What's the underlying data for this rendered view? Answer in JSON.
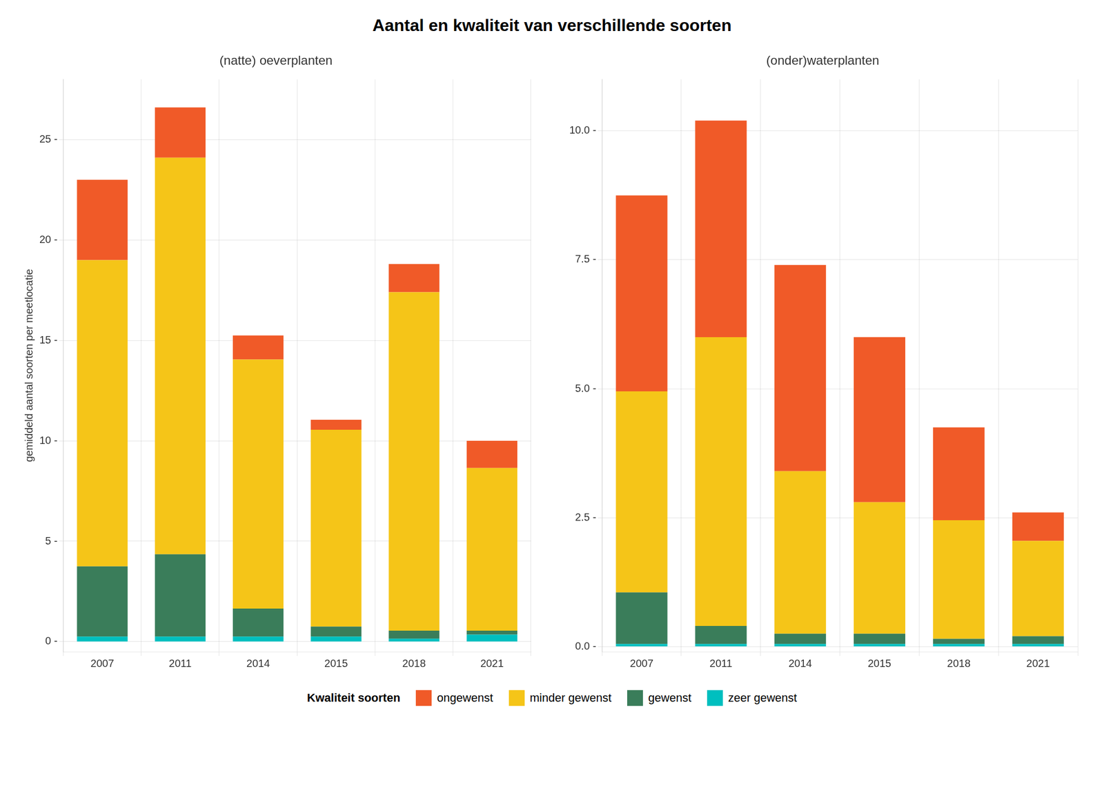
{
  "title": "Aantal en kwaliteit van verschillende soorten",
  "legend_title": "Kwaliteit soorten",
  "legend": "bottom",
  "chart_data": [
    {
      "type": "bar",
      "title": "(natte) oeverplanten",
      "ylabel": "gemiddeld aantal soorten per meetlocatie",
      "categories": [
        "2007",
        "2011",
        "2014",
        "2015",
        "2018",
        "2021"
      ],
      "stacked": true,
      "grid": true,
      "ylim": [
        -0.5,
        28
      ],
      "yticks": [
        {
          "value": 0,
          "label": "0 -"
        },
        {
          "value": 5,
          "label": "5 -"
        },
        {
          "value": 10,
          "label": "10 -"
        },
        {
          "value": 15,
          "label": "15 -"
        },
        {
          "value": 20,
          "label": "20 -"
        },
        {
          "value": 25,
          "label": "25 -"
        }
      ],
      "series": [
        {
          "name": "zeer gewenst",
          "color": "#00BFBF",
          "values": [
            0.25,
            0.25,
            0.25,
            0.25,
            0.15,
            0.35
          ]
        },
        {
          "name": "gewenst",
          "color": "#3A7D5A",
          "values": [
            3.5,
            4.1,
            1.4,
            0.5,
            0.4,
            0.2
          ]
        },
        {
          "name": "minder gewenst",
          "color": "#F5C518",
          "values": [
            15.25,
            19.75,
            12.4,
            9.8,
            16.85,
            8.1
          ]
        },
        {
          "name": "ongewenst",
          "color": "#F05A28",
          "values": [
            4.0,
            2.5,
            1.2,
            0.5,
            1.4,
            1.35
          ]
        }
      ]
    },
    {
      "type": "bar",
      "title": "(onder)waterplanten",
      "categories": [
        "2007",
        "2011",
        "2014",
        "2015",
        "2018",
        "2021"
      ],
      "stacked": true,
      "grid": true,
      "ylim": [
        -0.1,
        11
      ],
      "yticks": [
        {
          "value": 0.0,
          "label": "0.0 -"
        },
        {
          "value": 2.5,
          "label": "2.5 -"
        },
        {
          "value": 5.0,
          "label": "5.0 -"
        },
        {
          "value": 7.5,
          "label": "7.5 -"
        },
        {
          "value": 10.0,
          "label": "10.0 -"
        }
      ],
      "series": [
        {
          "name": "zeer gewenst",
          "color": "#00BFBF",
          "values": [
            0.05,
            0.05,
            0.05,
            0.05,
            0.05,
            0.05
          ]
        },
        {
          "name": "gewenst",
          "color": "#3A7D5A",
          "values": [
            1.0,
            0.35,
            0.2,
            0.2,
            0.1,
            0.15
          ]
        },
        {
          "name": "minder gewenst",
          "color": "#F5C518",
          "values": [
            3.9,
            5.6,
            3.15,
            2.55,
            2.3,
            1.85
          ]
        },
        {
          "name": "ongewenst",
          "color": "#F05A28",
          "values": [
            3.8,
            4.2,
            4.0,
            3.2,
            1.8,
            0.55
          ]
        }
      ]
    }
  ]
}
